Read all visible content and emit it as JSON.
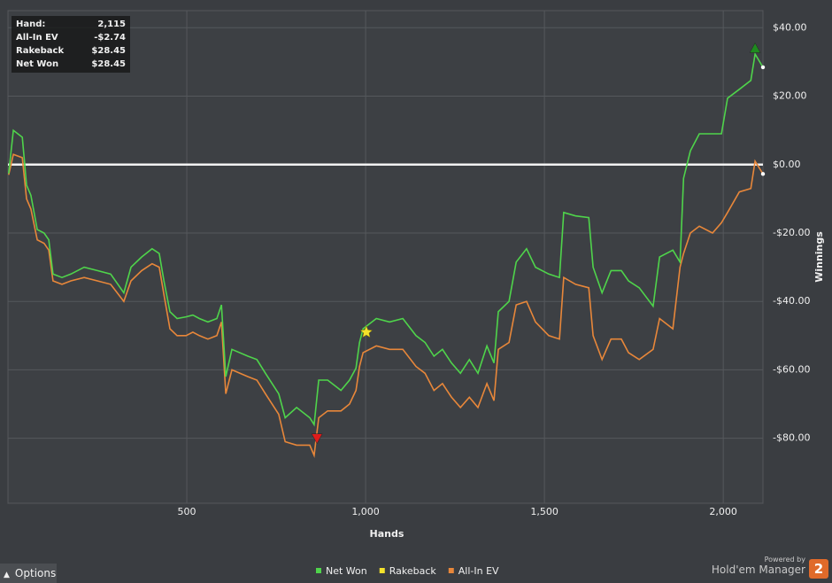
{
  "chart_data": {
    "type": "line",
    "x_label": "Hands",
    "y_label": "Winnings",
    "x": [
      2,
      15,
      40,
      52,
      64,
      82,
      101,
      114,
      126,
      151,
      176,
      213,
      250,
      287,
      324,
      344,
      374,
      403,
      423,
      436,
      453,
      473,
      498,
      517,
      535,
      559,
      584,
      597,
      609,
      626,
      671,
      696,
      720,
      757,
      775,
      807,
      844,
      856,
      869,
      894,
      931,
      955,
      973,
      983,
      993,
      1030,
      1067,
      1104,
      1141,
      1166,
      1191,
      1215,
      1240,
      1265,
      1290,
      1314,
      1339,
      1359,
      1371,
      1401,
      1421,
      1450,
      1475,
      1512,
      1542,
      1554,
      1587,
      1624,
      1636,
      1661,
      1686,
      1715,
      1735,
      1765,
      1804,
      1822,
      1859,
      1879,
      1889,
      1908,
      1933,
      1970,
      1995,
      2012,
      2045,
      2077,
      2089,
      2111
    ],
    "series": [
      {
        "name": "Net Won",
        "color": "#4fd44b",
        "values": [
          -2.6,
          10,
          8,
          -6,
          -9,
          -19,
          -20,
          -22,
          -32,
          -33,
          -32,
          -30,
          -31,
          -32,
          -37.5,
          -30,
          -27,
          -24.6,
          -26,
          -34,
          -43,
          -45,
          -44.5,
          -44,
          -45,
          -46,
          -45,
          -41,
          -62,
          -54,
          -56,
          -57,
          -61,
          -67,
          -74,
          -71,
          -74,
          -76,
          -63,
          -63,
          -66,
          -63,
          -59.5,
          -52,
          -48,
          -45,
          -46,
          -45,
          -50,
          -52,
          -56,
          -54,
          -58,
          -61,
          -57,
          -61,
          -53,
          -58,
          -43,
          -40,
          -28.5,
          -24.6,
          -30,
          -32,
          -33,
          -14,
          -15,
          -15.5,
          -30,
          -37.5,
          -31,
          -31,
          -34,
          -36,
          -41.4,
          -27,
          -25,
          -28.5,
          -4,
          4,
          9,
          9,
          9,
          19.4,
          22,
          24.6,
          32.3,
          28.45
        ]
      },
      {
        "name": "Rakeback",
        "color": "#f5e32b",
        "marker": "star",
        "x": [
          1002
        ],
        "values": [
          -49
        ]
      },
      {
        "name": "All-In EV",
        "color": "#e8873a",
        "values": [
          -3,
          3,
          2,
          -10,
          -13,
          -22,
          -23,
          -25,
          -34,
          -35,
          -34,
          -33,
          -34,
          -35,
          -40,
          -34,
          -31,
          -29,
          -30,
          -38,
          -48,
          -50,
          -50,
          -49,
          -50,
          -51,
          -50,
          -46,
          -67,
          -60,
          -62,
          -63,
          -67,
          -73,
          -81,
          -82,
          -82,
          -85,
          -74,
          -72,
          -72,
          -70,
          -66,
          -59,
          -55,
          -53,
          -54,
          -54,
          -59,
          -61,
          -66,
          -64,
          -68,
          -71,
          -68,
          -71,
          -64,
          -69,
          -54,
          -52,
          -41,
          -40,
          -46,
          -50,
          -51,
          -33,
          -35,
          -36,
          -50,
          -57,
          -51,
          -51,
          -55,
          -57,
          -54,
          -45,
          -48,
          -30,
          -26,
          -20,
          -18,
          -20,
          -17,
          -14,
          -8,
          -7,
          1,
          -2.74
        ]
      }
    ],
    "markers": [
      {
        "x": 2089,
        "y": 34,
        "color": "#1f8a1f",
        "shape": "triangle-up"
      },
      {
        "x": 864,
        "y": -80,
        "color": "#e01b1b",
        "shape": "triangle-down"
      }
    ],
    "xlim": [
      0,
      2111
    ],
    "ylim": [
      -99,
      45
    ],
    "xticks": [
      500,
      {
        "value": 1000,
        "label": "1,000"
      },
      {
        "value": 1500,
        "label": "1,500"
      },
      {
        "value": 2000,
        "label": "2,000"
      }
    ],
    "yticks": [
      {
        "value": 40,
        "label": "$40.00"
      },
      {
        "value": 20,
        "label": "$20.00"
      },
      {
        "value": 0,
        "label": "$0.00"
      },
      {
        "value": -20,
        "label": "-$20.00"
      },
      {
        "value": -40,
        "label": "-$40.00"
      },
      {
        "value": -60,
        "label": "-$60.00"
      },
      {
        "value": -80,
        "label": "-$80.00"
      }
    ],
    "grid": true,
    "zero_line": true,
    "legend": "bottom"
  },
  "stats_box": [
    {
      "label": "Hand:",
      "value": "2,115"
    },
    {
      "label": "All-In EV",
      "value": "-$2.74"
    },
    {
      "label": "Rakeback",
      "value": "$28.45"
    },
    {
      "label": "Net Won",
      "value": "$28.45"
    }
  ],
  "footer": {
    "options": "Options",
    "powered_by": "Powered by",
    "brand": "Hold'em Manager",
    "logo": "2"
  }
}
